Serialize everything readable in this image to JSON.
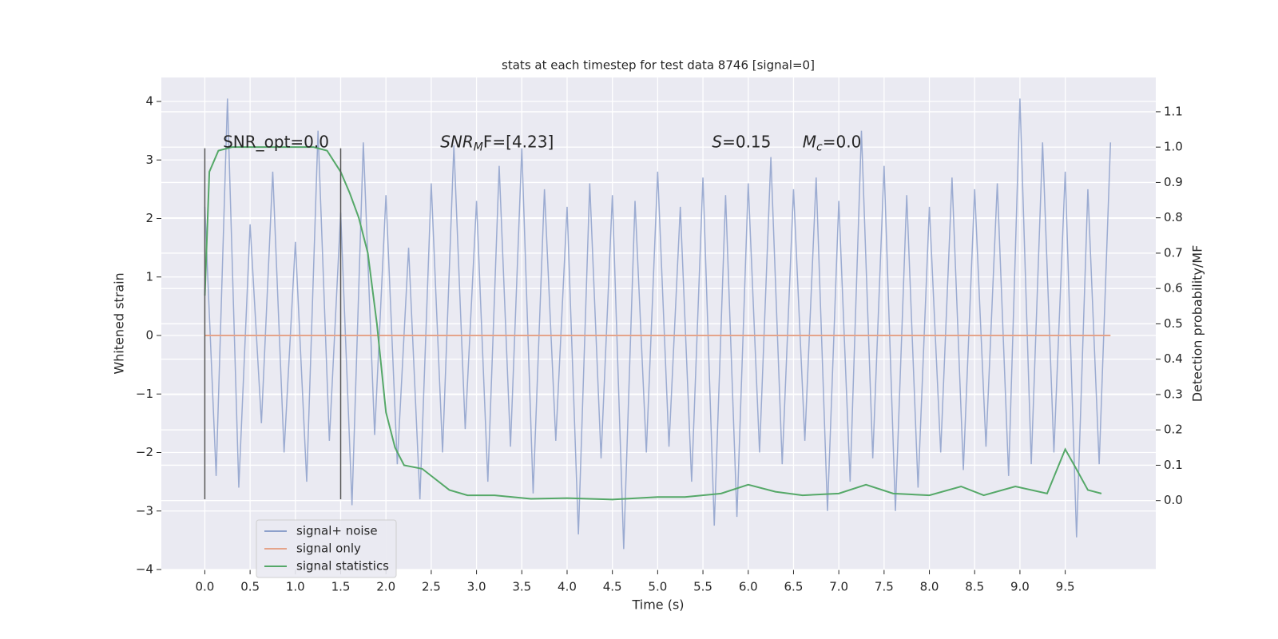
{
  "chart_data": {
    "type": "line",
    "title": "stats at each timestep for test data 8746 [signal=0]",
    "xlabel": "Time (s)",
    "ylabel": "Whitened strain",
    "y2label": "Detection probability/MF",
    "xlim": [
      -0.48,
      10.5
    ],
    "ylim": [
      -4,
      4.41
    ],
    "y2lim": [
      -0.195,
      1.197
    ],
    "xticks": [
      {
        "value": 0,
        "label": "0.0"
      },
      0.5,
      {
        "value": 1,
        "label": "1.0"
      },
      1.5,
      {
        "value": 2,
        "label": "2.0"
      },
      2.5,
      {
        "value": 3,
        "label": "3.0"
      },
      3.5,
      {
        "value": 4,
        "label": "4.0"
      },
      4.5,
      {
        "value": 5,
        "label": "5.0"
      },
      5.5,
      {
        "value": 6,
        "label": "6.0"
      },
      6.5,
      {
        "value": 7,
        "label": "7.0"
      },
      7.5,
      {
        "value": 8,
        "label": "8.0"
      },
      8.5,
      {
        "value": 9,
        "label": "9.0"
      },
      9.5
    ],
    "yticks": [
      {
        "value": -4,
        "label": "−4"
      },
      {
        "value": -3,
        "label": "−3"
      },
      {
        "value": -2,
        "label": "−2"
      },
      {
        "value": -1,
        "label": "−1"
      },
      0,
      1,
      2,
      3,
      4
    ],
    "y2ticks": [
      {
        "value": 0,
        "label": "0.0"
      },
      0.1,
      0.2,
      0.3,
      0.4,
      0.5,
      0.6,
      0.7,
      0.8,
      0.9,
      {
        "value": 1,
        "label": "1.0"
      },
      1.1
    ],
    "grid": true,
    "legend": "lower left",
    "series": [
      {
        "name": "signal+ noise",
        "color": "#8da0cb",
        "x": [
          0,
          0.125,
          0.25,
          0.375,
          0.5,
          0.625,
          0.75,
          0.875,
          1,
          1.125,
          1.25,
          1.375,
          1.5,
          1.625,
          1.75,
          1.875,
          2,
          2.125,
          2.25,
          2.375,
          2.5,
          2.625,
          2.75,
          2.875,
          3,
          3.125,
          3.25,
          3.375,
          3.5,
          3.625,
          3.75,
          3.875,
          4,
          4.125,
          4.25,
          4.375,
          4.5,
          4.625,
          4.75,
          4.875,
          5,
          5.125,
          5.25,
          5.375,
          5.5,
          5.625,
          5.75,
          5.875,
          6,
          6.125,
          6.25,
          6.375,
          6.5,
          6.625,
          6.75,
          6.875,
          7,
          7.125,
          7.25,
          7.375,
          7.5,
          7.625,
          7.75,
          7.875,
          8,
          8.125,
          8.25,
          8.375,
          8.5,
          8.625,
          8.75,
          8.875,
          9,
          9.125,
          9.25,
          9.375,
          9.5,
          9.625,
          9.75,
          9.875,
          10
        ],
        "values": [
          2.2,
          -2.4,
          4.05,
          -2.6,
          1.9,
          -1.5,
          2.8,
          -2.0,
          1.6,
          -2.5,
          3.5,
          -1.8,
          2.1,
          -2.9,
          3.3,
          -1.7,
          2.4,
          -2.2,
          1.5,
          -2.8,
          2.6,
          -2.0,
          3.25,
          -1.6,
          2.3,
          -2.5,
          2.9,
          -1.9,
          3.2,
          -2.7,
          2.5,
          -1.8,
          2.2,
          -3.4,
          2.6,
          -2.1,
          2.4,
          -3.65,
          2.3,
          -2.0,
          2.8,
          -1.9,
          2.2,
          -2.5,
          2.7,
          -3.25,
          2.4,
          -3.1,
          2.6,
          -2.0,
          3.05,
          -2.2,
          2.5,
          -1.8,
          2.7,
          -3.0,
          2.3,
          -2.5,
          3.5,
          -2.1,
          2.9,
          -3.0,
          2.4,
          -2.6,
          2.2,
          -2.0,
          2.7,
          -2.3,
          2.5,
          -1.9,
          2.6,
          -2.4,
          4.05,
          -2.2,
          3.3,
          -2.0,
          2.8,
          -3.45,
          2.5,
          -2.2,
          3.3
        ]
      },
      {
        "name": "signal only",
        "color": "#e5a48a",
        "x": [
          0,
          10
        ],
        "values": [
          0,
          0
        ]
      },
      {
        "name": "signal statistics",
        "color": "#55a868",
        "axis": "y2",
        "x": [
          0,
          0.05,
          0.15,
          0.3,
          1.0,
          1.2,
          1.35,
          1.5,
          1.6,
          1.7,
          1.8,
          1.9,
          2.0,
          2.1,
          2.2,
          2.4,
          2.5,
          2.7,
          2.9,
          3.2,
          3.6,
          4.0,
          4.5,
          5.0,
          5.3,
          5.7,
          6.0,
          6.3,
          6.6,
          7.0,
          7.3,
          7.6,
          8.0,
          8.35,
          8.6,
          8.95,
          9.3,
          9.5,
          9.6,
          9.75,
          9.9
        ],
        "values": [
          0.58,
          0.93,
          0.99,
          1.0,
          1.0,
          1.0,
          0.99,
          0.93,
          0.87,
          0.8,
          0.7,
          0.5,
          0.25,
          0.15,
          0.1,
          0.09,
          0.07,
          0.03,
          0.015,
          0.015,
          0.005,
          0.007,
          0.003,
          0.01,
          0.01,
          0.02,
          0.045,
          0.025,
          0.015,
          0.02,
          0.045,
          0.02,
          0.015,
          0.04,
          0.015,
          0.04,
          0.02,
          0.145,
          0.1,
          0.03,
          0.02
        ]
      }
    ],
    "vlines": [
      {
        "x": 0,
        "ymin": -2.8,
        "ymax": 3.2
      },
      {
        "x": 1.5,
        "ymin": -2.8,
        "ymax": 3.2
      }
    ],
    "annotations": [
      {
        "x": 0.2,
        "y": 3.3,
        "text": "SNR_opt=0.0"
      },
      {
        "x": 2.6,
        "y": 3.3,
        "text": "SNR",
        "sub": "M",
        "rest": "F=[4.23]"
      },
      {
        "x": 5.6,
        "y": 3.3,
        "text": "S",
        "rest": "=0.15"
      },
      {
        "x": 6.6,
        "y": 3.3,
        "text": "M",
        "sub": "c",
        "rest": "=0.0"
      }
    ]
  }
}
